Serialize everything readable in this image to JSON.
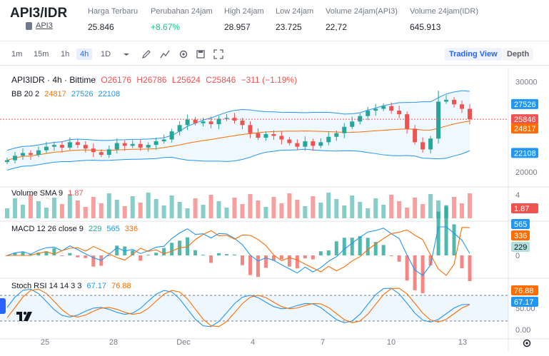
{
  "header": {
    "pair": "API3/IDR",
    "coin_link": "API3",
    "stats": [
      {
        "label": "Harga Terbaru",
        "value": "25.846",
        "up": false
      },
      {
        "label": "Perubahan 24jam",
        "value": "+8.67%",
        "up": true
      },
      {
        "label": "High 24jam",
        "value": "28.957",
        "up": false
      },
      {
        "label": "Low 24jam",
        "value": "23.725",
        "up": false
      },
      {
        "label": "Volume 24jam(API3)",
        "value": "22,72",
        "up": false
      },
      {
        "label": "Volume 24jam(IDR)",
        "value": "645.913",
        "up": false
      }
    ]
  },
  "toolbar": {
    "timeframes": [
      "1m",
      "15m",
      "1h",
      "4h",
      "1D"
    ],
    "active_timeframe": "4h",
    "views": [
      "Trading View",
      "Depth"
    ],
    "active_view": "Trading View"
  },
  "legend": {
    "symbol": "API3IDR · 4h · Bittime",
    "open": "O26176",
    "high": "H26786",
    "low": "L25624",
    "close": "C25846",
    "change": "−311 (−1.19%)",
    "bb_label": "BB 20 2",
    "bb_basis": "24817",
    "bb_upper": "27526",
    "bb_lower": "22108",
    "vol_label": "Volume SMA 9",
    "vol_value": "1.87",
    "macd_label": "MACD 12 26 close 9",
    "macd_hist": "229",
    "macd_line": "565",
    "macd_signal": "336",
    "stoch_label": "Stoch RSI 14 14 3 3",
    "stoch_k": "67.17",
    "stoch_d": "76.88"
  },
  "price_axis": {
    "ticks": [
      "30000",
      "20000"
    ],
    "badges": [
      {
        "value": "27526",
        "color": "#2196f3"
      },
      {
        "value": "25846",
        "color": "#ef5350"
      },
      {
        "value": "24817",
        "color": "#ff6d00"
      },
      {
        "value": "22108",
        "color": "#2196f3"
      }
    ]
  },
  "volume_axis": {
    "ticks": [
      "4"
    ],
    "badge": "1.87"
  },
  "macd_axis": {
    "ticks": [
      "0"
    ],
    "badges": [
      "565",
      "336",
      "229"
    ]
  },
  "stoch_axis": {
    "ticks": [
      "50.00",
      "0.00"
    ],
    "badges": [
      "76.88",
      "67.17"
    ]
  },
  "time_axis": [
    "25",
    "28",
    "Dec",
    "4",
    "7",
    "10",
    "13"
  ],
  "colors": {
    "up": "#26a69a",
    "down": "#ef5350",
    "bb_band": "#2196f3",
    "bb_basis": "#ff6d00",
    "accent": "#2962ff"
  },
  "chart_data": {
    "type": "candlestick",
    "symbol": "API3IDR",
    "interval": "4h",
    "ylim": [
      18500,
      31000
    ],
    "close_approx": [
      21300,
      21800,
      22100,
      21900,
      22400,
      22800,
      23000,
      22700,
      23300,
      23000,
      22600,
      22200,
      21900,
      22500,
      23200,
      22900,
      23100,
      22700,
      23000,
      23400,
      23600,
      24500,
      25200,
      25800,
      25400,
      25600,
      25300,
      25900,
      26000,
      25700,
      25200,
      24300,
      23800,
      24200,
      24000,
      23600,
      23200,
      22800,
      23400,
      22900,
      23300,
      23900,
      24300,
      25000,
      25600,
      26200,
      26800,
      27000,
      27300,
      26800,
      26400,
      24800,
      23300,
      22500,
      23700,
      27800,
      28000,
      27500,
      27000,
      25846
    ],
    "bb": {
      "basis": 24817,
      "upper": 27526,
      "lower": 22108
    },
    "volume_last": 1.87,
    "macd": {
      "line": 565,
      "signal": 336,
      "hist": 229
    },
    "stoch_rsi": {
      "k": 67.17,
      "d": 76.88
    }
  }
}
